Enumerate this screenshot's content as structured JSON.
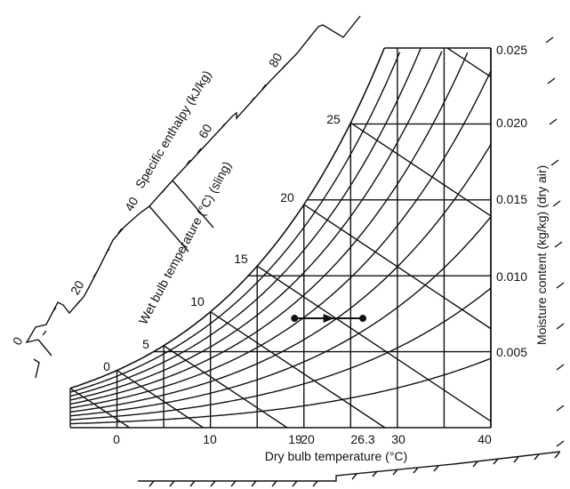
{
  "chart_data": {
    "type": "psychrometric",
    "xlabel": "Dry bulb temperature (°C)",
    "ylabel": "Moisture content (kg/kg) (dry air)",
    "wet_bulb_label": "Wet bulb temperature (°C) (sling)",
    "enthalpy_label": "Specific enthalpy (kJ/kg)",
    "xlim": [
      -5,
      40
    ],
    "ylim": [
      0,
      0.025
    ],
    "x_ticks": [
      "0",
      "10",
      "19",
      "20",
      "26.3",
      "30",
      "40"
    ],
    "y_ticks": [
      "0.005",
      "0.010",
      "0.015",
      "0.020",
      "0.025"
    ],
    "wet_bulb_ticks": [
      "0",
      "5",
      "10",
      "15",
      "20",
      "25"
    ],
    "enthalpy_ticks": [
      "0",
      "20",
      "40",
      "60",
      "80"
    ],
    "process": {
      "start": {
        "dry_bulb": 19,
        "moisture": 0.0072
      },
      "end": {
        "dry_bulb": 26.3,
        "moisture": 0.0072
      }
    }
  }
}
